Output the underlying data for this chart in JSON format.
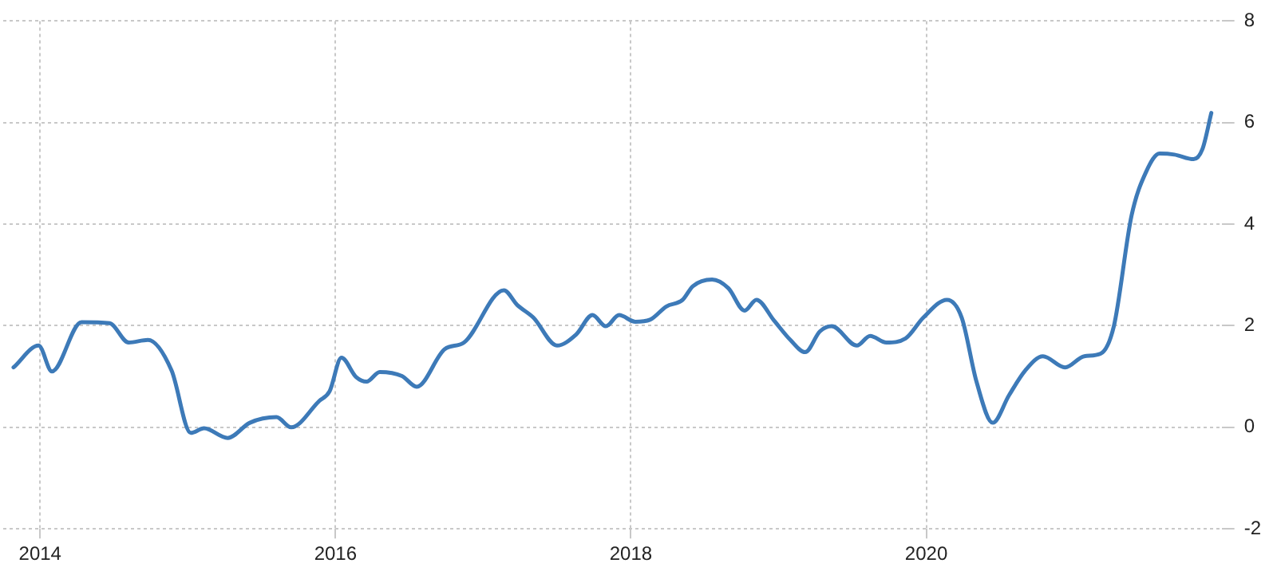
{
  "chart_data": {
    "type": "line",
    "x": [
      2013.82,
      2013.99,
      2014.08,
      2014.28,
      2014.47,
      2014.6,
      2014.73,
      2014.89,
      2015.02,
      2015.11,
      2015.27,
      2015.42,
      2015.6,
      2015.7,
      2015.89,
      2015.96,
      2016.04,
      2016.14,
      2016.21,
      2016.3,
      2016.45,
      2016.55,
      2016.74,
      2016.87,
      2017.14,
      2017.23,
      2017.34,
      2017.5,
      2017.63,
      2017.74,
      2017.83,
      2017.92,
      2018.03,
      2018.13,
      2018.24,
      2018.35,
      2018.42,
      2018.55,
      2018.66,
      2018.77,
      2018.85,
      2018.97,
      2019.08,
      2019.18,
      2019.28,
      2019.36,
      2019.53,
      2019.62,
      2019.73,
      2019.86,
      2019.98,
      2020.14,
      2020.24,
      2020.34,
      2020.45,
      2020.56,
      2020.67,
      2020.79,
      2020.94,
      2021.07,
      2021.18,
      2021.27,
      2021.39,
      2021.49,
      2021.58,
      2021.68,
      2021.81,
      2021.87,
      2021.93
    ],
    "series": [
      {
        "color": "#3d7ab8",
        "values": [
          1.18,
          1.61,
          1.1,
          2.07,
          2.05,
          1.67,
          1.72,
          1.12,
          -0.11,
          -0.02,
          -0.21,
          0.09,
          0.2,
          0.0,
          0.52,
          0.71,
          1.37,
          0.99,
          0.9,
          1.09,
          1.01,
          0.8,
          1.54,
          1.67,
          2.7,
          2.41,
          2.16,
          1.61,
          1.83,
          2.21,
          1.99,
          2.21,
          2.08,
          2.12,
          2.38,
          2.51,
          2.78,
          2.91,
          2.74,
          2.3,
          2.51,
          2.1,
          1.72,
          1.48,
          1.89,
          1.99,
          1.61,
          1.8,
          1.67,
          1.75,
          2.16,
          2.51,
          2.16,
          0.9,
          0.09,
          0.63,
          1.12,
          1.4,
          1.18,
          1.4,
          1.45,
          1.99,
          4.17,
          5.04,
          5.39,
          5.37,
          5.28,
          5.48,
          6.19
        ]
      }
    ],
    "xlim": [
      2013.75,
      2022.0
    ],
    "xticks": [
      2014,
      2016,
      2018,
      2020
    ],
    "ylim": [
      -2,
      8
    ],
    "yticks": [
      -2,
      0,
      2,
      4,
      6,
      8
    ],
    "grid": true,
    "legend": false,
    "marker": "none",
    "line_style": "solid"
  }
}
